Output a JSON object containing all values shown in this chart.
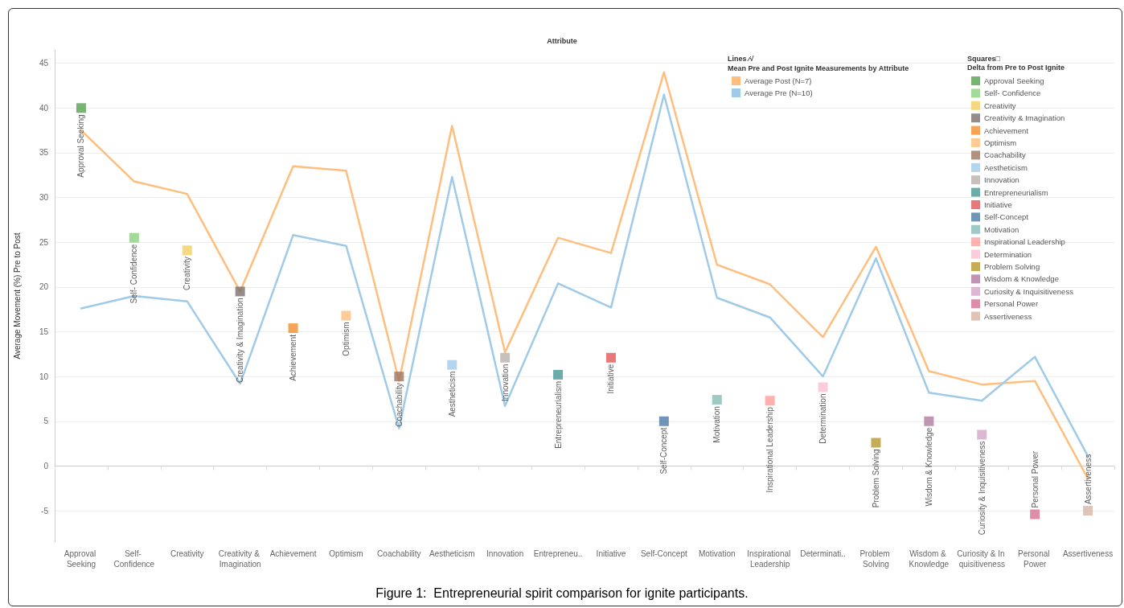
{
  "chart_data": {
    "type": "line",
    "xlabel": "Attribute",
    "ylabel": "Average Movement (%) Pre to Post",
    "legend_title": "Mean Pre and Post Ignite Measurements by Attribute",
    "annotations": [
      "Lines ⁄√",
      "Squares□",
      "Delta from Pre to Post Ignite",
      "Figure 1:  Entrepreneurial spirit comparison for ignite participants."
    ],
    "categories": [
      "Approval Seeking",
      "Self- Confidence",
      "Creativity",
      "Creativity & Imagination",
      "Achievement",
      "Optimism",
      "Coachability",
      "Aestheticism",
      "Innovation",
      "Entrepreneu..",
      "Initiative",
      "Self-Concept",
      "Motivation",
      "Inspirational Leadership",
      "Determinati..",
      "Problem Solving",
      "Wisdom & Knowledge",
      "Curiosity & In quisitiveness",
      "Personal Power",
      "Assertiveness"
    ],
    "ylim": [
      -8.5,
      46.5
    ],
    "yticks": [
      -5,
      0,
      5,
      10,
      15,
      20,
      25,
      30,
      35,
      40,
      45
    ],
    "grid": "y",
    "legend": "top right",
    "line_style": "solid",
    "series": [
      {
        "name": "Average Post (N=7)",
        "type": "line",
        "marker": "none",
        "color": "#ffbe7d",
        "values": [
          37.5,
          31.8,
          30.4,
          19.5,
          33.5,
          33.0,
          9.5,
          38.0,
          12.7,
          25.5,
          23.8,
          44.0,
          22.5,
          20.3,
          14.4,
          24.5,
          10.6,
          9.1,
          9.5,
          -1.4
        ]
      },
      {
        "name": "Average Pre (N=10)",
        "type": "line",
        "marker": "none",
        "color": "#a0cbe8",
        "values": [
          17.6,
          19.0,
          18.4,
          9.2,
          25.8,
          24.6,
          4.2,
          32.3,
          6.7,
          20.4,
          17.7,
          41.5,
          18.8,
          16.6,
          10.0,
          23.2,
          8.2,
          7.3,
          12.2,
          1.1
        ]
      },
      {
        "name": "Approval Seeking",
        "type": "scatter",
        "marker": "square",
        "color": "#59a14f",
        "values": [
          40,
          null,
          null,
          null,
          null,
          null,
          null,
          null,
          null,
          null,
          null,
          null,
          null,
          null,
          null,
          null,
          null,
          null,
          null,
          null
        ],
        "value_labels": [
          "Approval Seeking",
          null,
          null,
          null,
          null,
          null,
          null,
          null,
          null,
          null,
          null,
          null,
          null,
          null,
          null,
          null,
          null,
          null,
          null,
          null
        ]
      },
      {
        "name": "Self- Confidence",
        "type": "scatter",
        "marker": "square",
        "color": "#8cd17d",
        "values": [
          null,
          25.5,
          null,
          null,
          null,
          null,
          null,
          null,
          null,
          null,
          null,
          null,
          null,
          null,
          null,
          null,
          null,
          null,
          null,
          null
        ],
        "value_labels": [
          null,
          "Self- Confidence",
          null,
          null,
          null,
          null,
          null,
          null,
          null,
          null,
          null,
          null,
          null,
          null,
          null,
          null,
          null,
          null,
          null,
          null
        ]
      },
      {
        "name": "Creativity",
        "type": "scatter",
        "marker": "square",
        "color": "#f1ce63",
        "values": [
          null,
          null,
          24.1,
          null,
          null,
          null,
          null,
          null,
          null,
          null,
          null,
          null,
          null,
          null,
          null,
          null,
          null,
          null,
          null,
          null
        ],
        "value_labels": [
          null,
          null,
          "Creativity",
          null,
          null,
          null,
          null,
          null,
          null,
          null,
          null,
          null,
          null,
          null,
          null,
          null,
          null,
          null,
          null,
          null
        ]
      },
      {
        "name": "Creativity & Imagination",
        "type": "scatter",
        "marker": "square",
        "color": "#79706e",
        "values": [
          null,
          null,
          null,
          19.5,
          null,
          null,
          null,
          null,
          null,
          null,
          null,
          null,
          null,
          null,
          null,
          null,
          null,
          null,
          null,
          null
        ],
        "value_labels": [
          null,
          null,
          null,
          "Creativity & Imagination",
          null,
          null,
          null,
          null,
          null,
          null,
          null,
          null,
          null,
          null,
          null,
          null,
          null,
          null,
          null,
          null
        ]
      },
      {
        "name": "Achievement",
        "type": "scatter",
        "marker": "square",
        "color": "#f28e2b",
        "values": [
          null,
          null,
          null,
          null,
          15.4,
          null,
          null,
          null,
          null,
          null,
          null,
          null,
          null,
          null,
          null,
          null,
          null,
          null,
          null,
          null
        ],
        "value_labels": [
          null,
          null,
          null,
          null,
          "Achievement",
          null,
          null,
          null,
          null,
          null,
          null,
          null,
          null,
          null,
          null,
          null,
          null,
          null,
          null,
          null
        ]
      },
      {
        "name": "Optimism",
        "type": "scatter",
        "marker": "square",
        "color": "#ffbe7d",
        "values": [
          null,
          null,
          null,
          null,
          null,
          16.8,
          null,
          null,
          null,
          null,
          null,
          null,
          null,
          null,
          null,
          null,
          null,
          null,
          null,
          null
        ],
        "value_labels": [
          null,
          null,
          null,
          null,
          null,
          "Optimism",
          null,
          null,
          null,
          null,
          null,
          null,
          null,
          null,
          null,
          null,
          null,
          null,
          null,
          null
        ]
      },
      {
        "name": "Coachability",
        "type": "scatter",
        "marker": "square",
        "color": "#9d7660",
        "values": [
          null,
          null,
          null,
          null,
          null,
          null,
          10.0,
          null,
          null,
          null,
          null,
          null,
          null,
          null,
          null,
          null,
          null,
          null,
          null,
          null
        ],
        "value_labels": [
          null,
          null,
          null,
          null,
          null,
          null,
          "Coachability",
          null,
          null,
          null,
          null,
          null,
          null,
          null,
          null,
          null,
          null,
          null,
          null,
          null
        ]
      },
      {
        "name": "Aestheticism",
        "type": "scatter",
        "marker": "square",
        "color": "#a0cbe8",
        "values": [
          null,
          null,
          null,
          null,
          null,
          null,
          null,
          11.3,
          null,
          null,
          null,
          null,
          null,
          null,
          null,
          null,
          null,
          null,
          null,
          null
        ],
        "value_labels": [
          null,
          null,
          null,
          null,
          null,
          null,
          null,
          "Aestheticism",
          null,
          null,
          null,
          null,
          null,
          null,
          null,
          null,
          null,
          null,
          null,
          null
        ]
      },
      {
        "name": "Innovation",
        "type": "scatter",
        "marker": "square",
        "color": "#bab0ac",
        "values": [
          null,
          null,
          null,
          null,
          null,
          null,
          null,
          null,
          12.1,
          null,
          null,
          null,
          null,
          null,
          null,
          null,
          null,
          null,
          null,
          null
        ],
        "value_labels": [
          null,
          null,
          null,
          null,
          null,
          null,
          null,
          null,
          "Innovation",
          null,
          null,
          null,
          null,
          null,
          null,
          null,
          null,
          null,
          null,
          null
        ]
      },
      {
        "name": "Entrepreneurialism",
        "type": "scatter",
        "marker": "square",
        "color": "#499894",
        "values": [
          null,
          null,
          null,
          null,
          null,
          null,
          null,
          null,
          null,
          10.2,
          null,
          null,
          null,
          null,
          null,
          null,
          null,
          null,
          null,
          null
        ],
        "value_labels": [
          null,
          null,
          null,
          null,
          null,
          null,
          null,
          null,
          null,
          "Entrepreneurialism",
          null,
          null,
          null,
          null,
          null,
          null,
          null,
          null,
          null,
          null
        ]
      },
      {
        "name": "Initiative",
        "type": "scatter",
        "marker": "square",
        "color": "#e15759",
        "values": [
          null,
          null,
          null,
          null,
          null,
          null,
          null,
          null,
          null,
          null,
          12.1,
          null,
          null,
          null,
          null,
          null,
          null,
          null,
          null,
          null
        ],
        "value_labels": [
          null,
          null,
          null,
          null,
          null,
          null,
          null,
          null,
          null,
          null,
          "Initiative",
          null,
          null,
          null,
          null,
          null,
          null,
          null,
          null,
          null
        ]
      },
      {
        "name": "Self-Concept",
        "type": "scatter",
        "marker": "square",
        "color": "#4e79a7",
        "values": [
          null,
          null,
          null,
          null,
          null,
          null,
          null,
          null,
          null,
          null,
          null,
          5.0,
          null,
          null,
          null,
          null,
          null,
          null,
          null,
          null
        ],
        "value_labels": [
          null,
          null,
          null,
          null,
          null,
          null,
          null,
          null,
          null,
          null,
          null,
          "Self-Concept",
          null,
          null,
          null,
          null,
          null,
          null,
          null,
          null
        ]
      },
      {
        "name": "Motivation",
        "type": "scatter",
        "marker": "square",
        "color": "#86bcb6",
        "values": [
          null,
          null,
          null,
          null,
          null,
          null,
          null,
          null,
          null,
          null,
          null,
          null,
          7.4,
          null,
          null,
          null,
          null,
          null,
          null,
          null
        ],
        "value_labels": [
          null,
          null,
          null,
          null,
          null,
          null,
          null,
          null,
          null,
          null,
          null,
          null,
          "Motivation",
          null,
          null,
          null,
          null,
          null,
          null,
          null
        ]
      },
      {
        "name": "Inspirational Leadership",
        "type": "scatter",
        "marker": "square",
        "color": "#ff9d9a",
        "values": [
          null,
          null,
          null,
          null,
          null,
          null,
          null,
          null,
          null,
          null,
          null,
          null,
          null,
          7.3,
          null,
          null,
          null,
          null,
          null,
          null
        ],
        "value_labels": [
          null,
          null,
          null,
          null,
          null,
          null,
          null,
          null,
          null,
          null,
          null,
          null,
          null,
          "Inspirational Leadership",
          null,
          null,
          null,
          null,
          null,
          null
        ]
      },
      {
        "name": "Determination",
        "type": "scatter",
        "marker": "square",
        "color": "#fabfd2",
        "values": [
          null,
          null,
          null,
          null,
          null,
          null,
          null,
          null,
          null,
          null,
          null,
          null,
          null,
          null,
          8.8,
          null,
          null,
          null,
          null,
          null
        ],
        "value_labels": [
          null,
          null,
          null,
          null,
          null,
          null,
          null,
          null,
          null,
          null,
          null,
          null,
          null,
          null,
          "Determination",
          null,
          null,
          null,
          null,
          null
        ]
      },
      {
        "name": "Problem Solving",
        "type": "scatter",
        "marker": "square",
        "color": "#b6992d",
        "values": [
          null,
          null,
          null,
          null,
          null,
          null,
          null,
          null,
          null,
          null,
          null,
          null,
          null,
          null,
          null,
          2.6,
          null,
          null,
          null,
          null
        ],
        "value_labels": [
          null,
          null,
          null,
          null,
          null,
          null,
          null,
          null,
          null,
          null,
          null,
          null,
          null,
          null,
          null,
          "Problem Solving",
          null,
          null,
          null,
          null
        ]
      },
      {
        "name": "Wisdom & Knowledge",
        "type": "scatter",
        "marker": "square",
        "color": "#b07aa1",
        "values": [
          null,
          null,
          null,
          null,
          null,
          null,
          null,
          null,
          null,
          null,
          null,
          null,
          null,
          null,
          null,
          null,
          5.0,
          null,
          null,
          null
        ],
        "value_labels": [
          null,
          null,
          null,
          null,
          null,
          null,
          null,
          null,
          null,
          null,
          null,
          null,
          null,
          null,
          null,
          null,
          "Wisdom & Knowledge",
          null,
          null,
          null
        ]
      },
      {
        "name": "Curiosity & Inquisitiveness",
        "type": "scatter",
        "marker": "square",
        "color": "#d4a6c8",
        "values": [
          null,
          null,
          null,
          null,
          null,
          null,
          null,
          null,
          null,
          null,
          null,
          null,
          null,
          null,
          null,
          null,
          null,
          3.5,
          null,
          null
        ],
        "value_labels": [
          null,
          null,
          null,
          null,
          null,
          null,
          null,
          null,
          null,
          null,
          null,
          null,
          null,
          null,
          null,
          null,
          null,
          "Curiosity & Inquisitiveness",
          null,
          null
        ]
      },
      {
        "name": "Personal Power",
        "type": "scatter",
        "marker": "square",
        "color": "#d37295",
        "values": [
          null,
          null,
          null,
          null,
          null,
          null,
          null,
          null,
          null,
          null,
          null,
          null,
          null,
          null,
          null,
          null,
          null,
          null,
          -5.4,
          null
        ],
        "value_labels": [
          null,
          null,
          null,
          null,
          null,
          null,
          null,
          null,
          null,
          null,
          null,
          null,
          null,
          null,
          null,
          null,
          null,
          null,
          "Personal Power",
          null
        ]
      },
      {
        "name": "Assertiveness",
        "type": "scatter",
        "marker": "square",
        "color": "#d7b5a6",
        "values": [
          null,
          null,
          null,
          null,
          null,
          null,
          null,
          null,
          null,
          null,
          null,
          null,
          null,
          null,
          null,
          null,
          null,
          null,
          null,
          -5.0
        ],
        "value_labels": [
          null,
          null,
          null,
          null,
          null,
          null,
          null,
          null,
          null,
          null,
          null,
          null,
          null,
          null,
          null,
          null,
          null,
          null,
          null,
          "Assertiveness"
        ]
      }
    ]
  }
}
